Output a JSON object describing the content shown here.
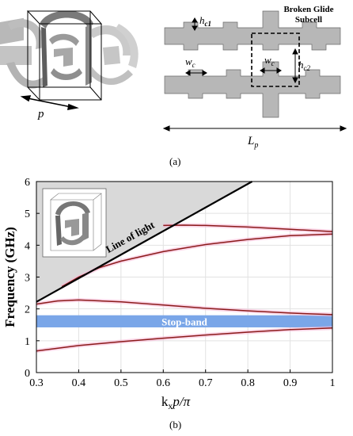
{
  "figure_a": {
    "caption": "(a)",
    "left_label": "p",
    "right": {
      "hc1": "h",
      "hc1_sub": "c1",
      "wc_left": "w",
      "wc_left_sub": "c",
      "wc_inner": "w",
      "wc_inner_sub": "c",
      "hc2": "h",
      "hc2_sub": "c2",
      "subcell_label_line1": "Broken Glide",
      "subcell_label_line2": "Subcell",
      "Lp": "L",
      "Lp_sub": "p"
    }
  },
  "figure_b": {
    "caption": "(b)",
    "colors": {
      "band_line": "#8b1a1a",
      "band_glow": "#f7b6d6",
      "stopband_fill": "#7aa6e8",
      "light_region": "#d9d9d9",
      "line_of_light": "#000000"
    },
    "annotations": {
      "line_of_light": "Line of light",
      "stopband": "Stop-band"
    },
    "chart_data": {
      "type": "line",
      "xlabel_main": "k",
      "xlabel_sub": "x",
      "xlabel_tail": "p/π",
      "ylabel": "Frequency (GHz)",
      "xlim": [
        0.3,
        1.0
      ],
      "ylim": [
        0,
        6
      ],
      "xticks": [
        "0.3",
        "0.4",
        "0.5",
        "0.6",
        "0.7",
        "0.8",
        "0.9",
        "1"
      ],
      "yticks": [
        "0",
        "1",
        "2",
        "3",
        "4",
        "5",
        "6"
      ],
      "grid": true,
      "light_line": {
        "x": [
          0.3,
          0.81
        ],
        "y": [
          2.22,
          6.0
        ]
      },
      "stopband": {
        "y_low": 1.42,
        "y_high": 1.8
      },
      "series": [
        {
          "x": [
            0.3,
            0.4,
            0.5,
            0.6,
            0.7,
            0.8,
            0.9,
            1.0
          ],
          "y": [
            0.68,
            0.85,
            0.97,
            1.08,
            1.18,
            1.27,
            1.35,
            1.4
          ]
        },
        {
          "x": [
            0.3,
            0.35,
            0.4,
            0.5,
            0.6,
            0.7,
            0.8,
            0.9,
            1.0
          ],
          "y": [
            2.15,
            2.25,
            2.28,
            2.22,
            2.12,
            2.02,
            1.94,
            1.87,
            1.82
          ]
        },
        {
          "x": [
            0.36,
            0.4,
            0.45,
            0.5,
            0.6,
            0.7,
            0.8,
            0.9,
            1.0
          ],
          "y": [
            2.7,
            3.0,
            3.3,
            3.5,
            3.8,
            4.02,
            4.18,
            4.3,
            4.35
          ]
        },
        {
          "x": [
            0.6,
            0.65,
            0.7,
            0.8,
            0.9,
            1.0
          ],
          "y": [
            4.62,
            4.63,
            4.62,
            4.57,
            4.5,
            4.43
          ]
        }
      ]
    }
  }
}
